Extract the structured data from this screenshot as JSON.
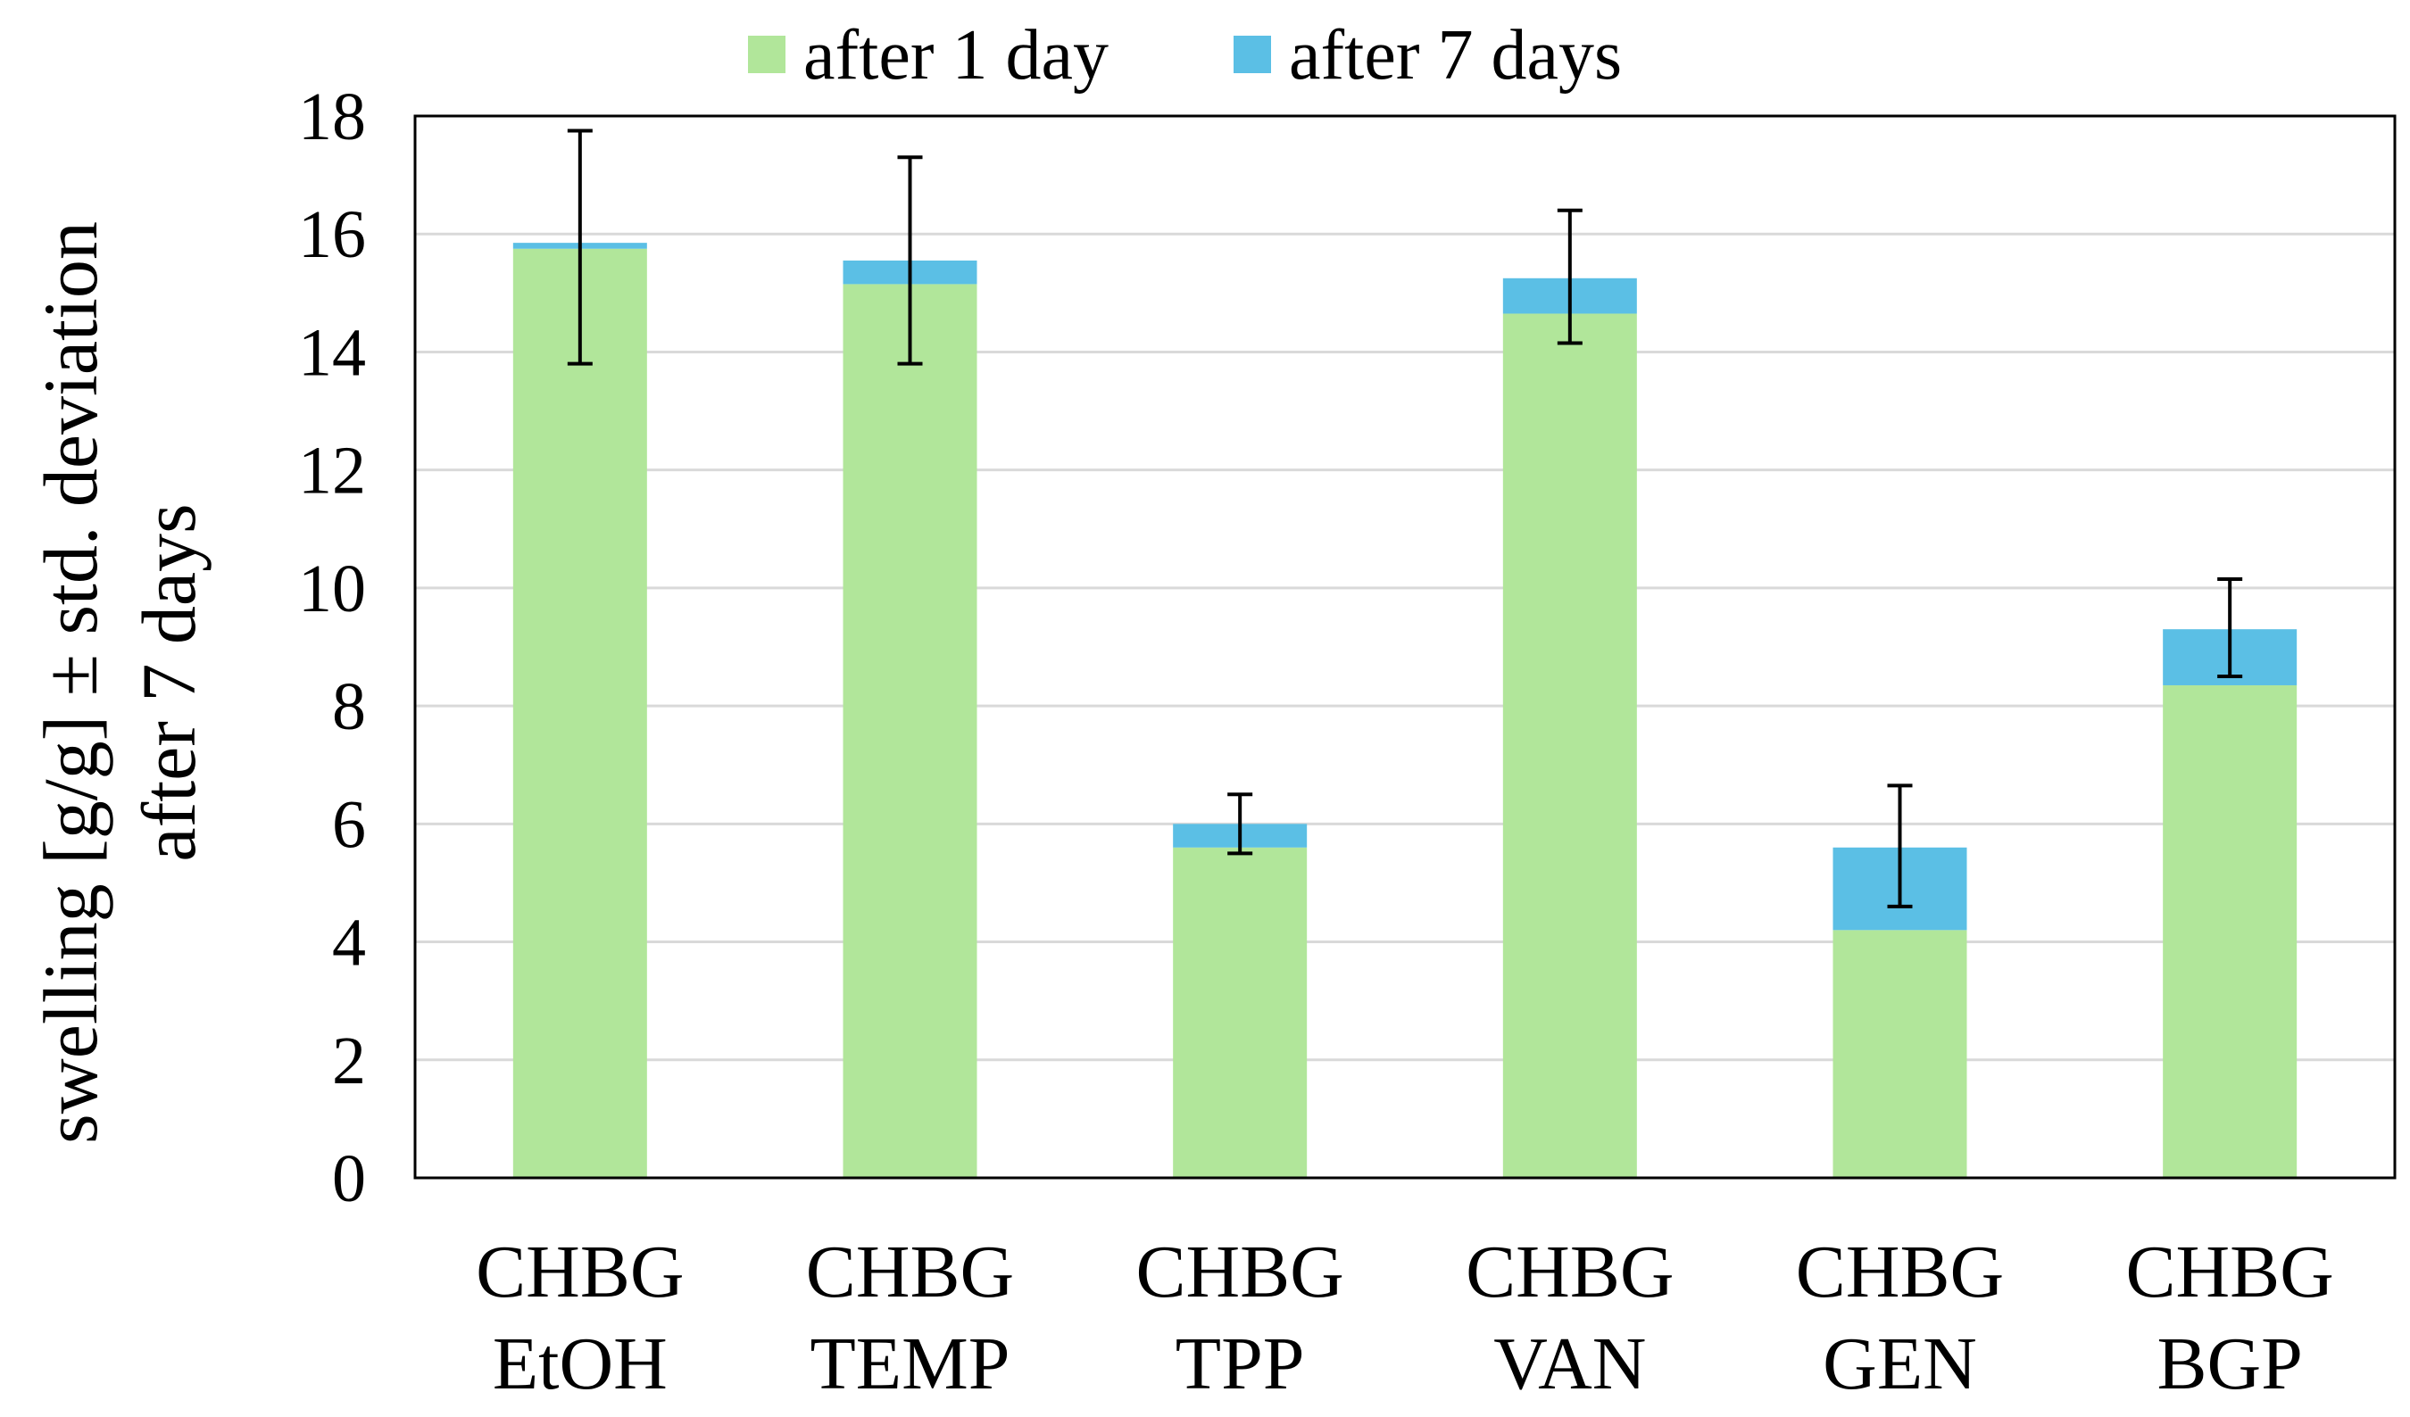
{
  "chart_data": {
    "type": "bar",
    "stacked": true,
    "title": "",
    "xlabel": "",
    "ylabel_lines": [
      "swelling [g/g] ± std. deviation",
      "after 7 days"
    ],
    "ylim": [
      0,
      18
    ],
    "yticks": [
      0,
      2,
      4,
      6,
      8,
      10,
      12,
      14,
      16,
      18
    ],
    "grid": true,
    "legend_position": "top",
    "categories": [
      {
        "line1": "CHBG",
        "line2": "EtOH"
      },
      {
        "line1": "CHBG",
        "line2": "TEMP"
      },
      {
        "line1": "CHBG",
        "line2": "TPP"
      },
      {
        "line1": "CHBG",
        "line2": "VAN"
      },
      {
        "line1": "CHBG",
        "line2": "GEN"
      },
      {
        "line1": "CHBG",
        "line2": "BGP"
      }
    ],
    "series": [
      {
        "name": "after 1 day",
        "color": "#b1e69a",
        "values": [
          15.75,
          15.15,
          5.6,
          14.65,
          4.2,
          8.35
        ]
      },
      {
        "name": "after 7 days",
        "color": "#5bbfe5",
        "values": [
          0.1,
          0.4,
          0.4,
          0.6,
          1.4,
          0.95
        ]
      }
    ],
    "error_bars": {
      "center": [
        15.8,
        15.55,
        6.0,
        15.3,
        5.6,
        9.3
      ],
      "low": [
        13.8,
        13.8,
        5.5,
        14.15,
        4.6,
        8.5
      ],
      "high": [
        17.75,
        17.3,
        6.5,
        16.4,
        6.65,
        10.15
      ]
    }
  }
}
